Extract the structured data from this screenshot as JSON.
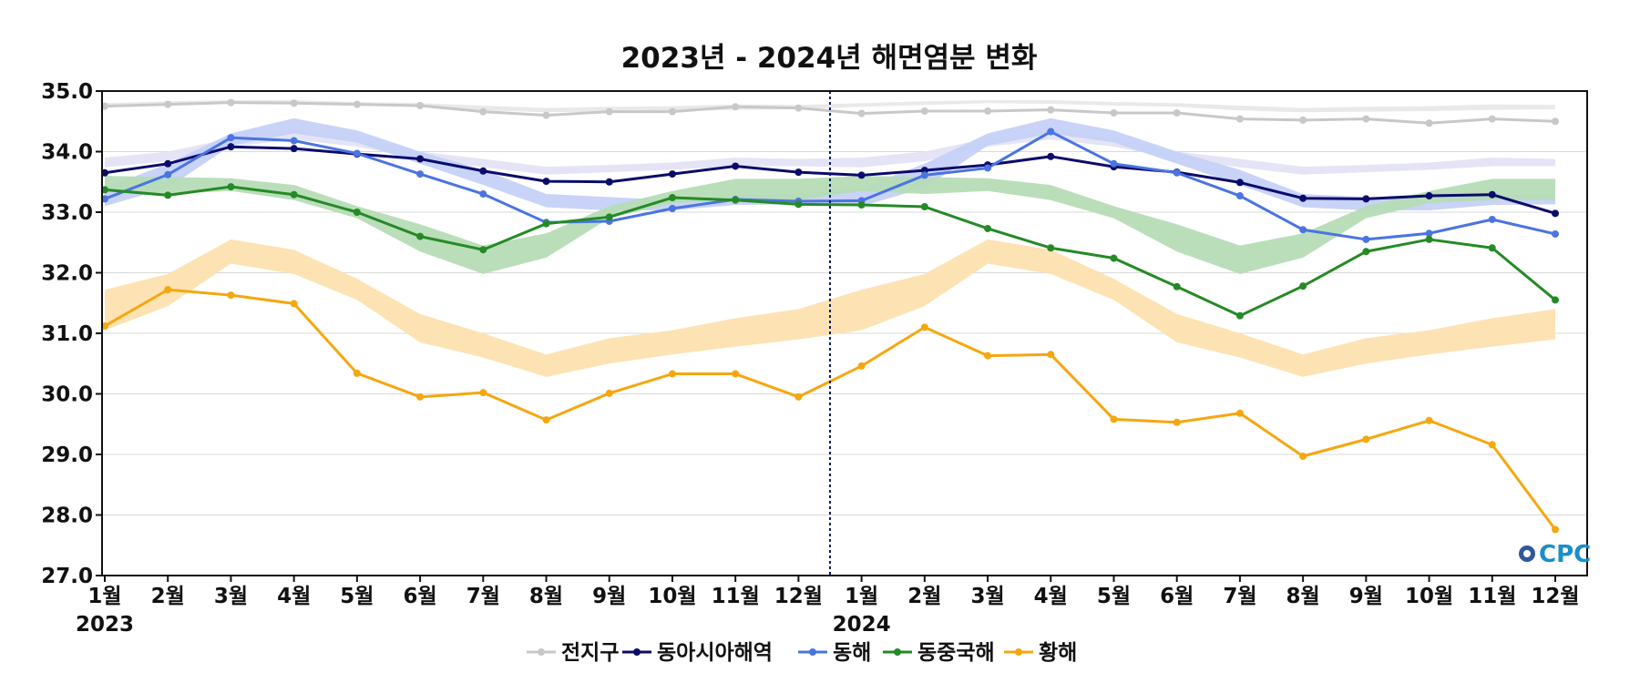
{
  "chart_data": {
    "type": "line",
    "title": "2023년 - 2024년 해면염분 변화",
    "xlabel": "",
    "ylabel": "",
    "ylim": [
      27.0,
      35.0
    ],
    "y_ticks": [
      "35.0",
      "34.0",
      "33.0",
      "32.0",
      "31.0",
      "30.0",
      "29.0",
      "28.0",
      "27.0"
    ],
    "categories": [
      "1월",
      "2월",
      "3월",
      "4월",
      "5월",
      "6월",
      "7월",
      "8월",
      "9월",
      "10월",
      "11월",
      "12월",
      "1월",
      "2월",
      "3월",
      "4월",
      "5월",
      "6월",
      "7월",
      "8월",
      "9월",
      "10월",
      "11월",
      "12월"
    ],
    "year_labels": [
      {
        "label": "2023",
        "index": 0
      },
      {
        "label": "2024",
        "index": 12
      }
    ],
    "divider_between": [
      11,
      12
    ],
    "grid": true,
    "legend_position": "bottom-center",
    "logo": "OCPC",
    "series": [
      {
        "name": "전지구",
        "color": "#c8c8c8",
        "values": [
          34.75,
          34.78,
          34.81,
          34.8,
          34.78,
          34.76,
          34.66,
          34.6,
          34.66,
          34.66,
          34.74,
          34.72,
          34.63,
          34.67,
          34.67,
          34.69,
          34.64,
          34.64,
          34.54,
          34.52,
          34.54,
          34.47,
          34.54,
          34.5
        ],
        "band_low": [
          34.74,
          34.77,
          34.8,
          34.79,
          34.76,
          34.74,
          34.68,
          34.65,
          34.66,
          34.67,
          34.69,
          34.7,
          34.74,
          34.77,
          34.8,
          34.79,
          34.76,
          34.74,
          34.68,
          34.65,
          34.66,
          34.67,
          34.69,
          34.7
        ],
        "band_high": [
          34.8,
          34.83,
          34.85,
          34.85,
          34.82,
          34.8,
          34.76,
          34.72,
          34.74,
          34.75,
          34.78,
          34.77,
          34.8,
          34.83,
          34.85,
          34.85,
          34.82,
          34.8,
          34.76,
          34.72,
          34.74,
          34.75,
          34.78,
          34.77
        ],
        "band_color": "#e8e8e8"
      },
      {
        "name": "동아시아해역",
        "color": "#0b0b6b",
        "values": [
          33.65,
          33.8,
          34.08,
          34.05,
          33.96,
          33.88,
          33.68,
          33.51,
          33.5,
          33.63,
          33.76,
          33.66,
          33.61,
          33.69,
          33.78,
          33.92,
          33.75,
          33.66,
          33.49,
          33.23,
          33.22,
          33.27,
          33.29,
          32.98
        ],
        "band_low": [
          33.74,
          33.84,
          34.08,
          34.2,
          34.08,
          33.88,
          33.74,
          33.62,
          33.66,
          33.7,
          33.76,
          33.76,
          33.74,
          33.84,
          34.08,
          34.2,
          34.08,
          33.88,
          33.74,
          33.62,
          33.66,
          33.7,
          33.76,
          33.76
        ],
        "band_high": [
          33.9,
          34.0,
          34.22,
          34.35,
          34.22,
          34.0,
          33.88,
          33.75,
          33.78,
          33.82,
          33.9,
          33.88,
          33.9,
          34.0,
          34.22,
          34.35,
          34.22,
          34.0,
          33.88,
          33.75,
          33.78,
          33.82,
          33.9,
          33.88
        ],
        "band_color": "#e4e3f5"
      },
      {
        "name": "동해",
        "color": "#4a74e0",
        "values": [
          33.22,
          33.62,
          34.23,
          34.18,
          33.97,
          33.63,
          33.3,
          32.83,
          32.85,
          33.06,
          33.21,
          33.18,
          33.19,
          33.61,
          33.73,
          34.33,
          33.8,
          33.65,
          33.27,
          32.71,
          32.55,
          32.65,
          32.88,
          32.64
        ],
        "band_low": [
          33.1,
          33.4,
          34.1,
          34.3,
          34.15,
          33.8,
          33.45,
          33.08,
          33.03,
          33.03,
          33.12,
          33.13,
          33.1,
          33.4,
          34.1,
          34.3,
          34.15,
          33.8,
          33.45,
          33.08,
          33.03,
          33.03,
          33.12,
          33.13
        ],
        "band_high": [
          33.4,
          33.8,
          34.3,
          34.55,
          34.35,
          34.0,
          33.7,
          33.3,
          33.25,
          33.2,
          33.28,
          33.3,
          33.4,
          33.8,
          34.3,
          34.55,
          34.35,
          34.0,
          33.7,
          33.3,
          33.25,
          33.2,
          33.28,
          33.3
        ],
        "band_color": "#c5d1f7"
      },
      {
        "name": "동중국해",
        "color": "#258a25",
        "values": [
          33.37,
          33.28,
          33.42,
          33.29,
          33.0,
          32.6,
          32.38,
          32.81,
          32.92,
          33.24,
          33.2,
          33.13,
          33.12,
          33.09,
          32.73,
          32.41,
          32.24,
          31.77,
          31.29,
          31.78,
          32.35,
          32.55,
          32.41,
          31.55
        ],
        "band_low": [
          33.35,
          33.3,
          33.35,
          33.2,
          32.9,
          32.35,
          31.98,
          32.25,
          32.9,
          33.15,
          33.2,
          33.2,
          33.35,
          33.3,
          33.35,
          33.2,
          32.9,
          32.35,
          31.98,
          32.25,
          32.9,
          33.15,
          33.2,
          33.2
        ],
        "band_high": [
          33.6,
          33.58,
          33.56,
          33.45,
          33.1,
          32.8,
          32.45,
          32.65,
          33.1,
          33.35,
          33.55,
          33.55,
          33.6,
          33.58,
          33.56,
          33.45,
          33.1,
          32.8,
          32.45,
          32.65,
          33.1,
          33.35,
          33.55,
          33.55
        ],
        "band_color": "#b6dcb6"
      },
      {
        "name": "황해",
        "color": "#f5a70f",
        "values": [
          31.12,
          31.72,
          31.63,
          31.49,
          30.34,
          29.95,
          30.02,
          29.57,
          30.01,
          30.33,
          30.33,
          29.95,
          30.46,
          31.1,
          30.63,
          30.65,
          29.58,
          29.53,
          29.68,
          28.97,
          29.25,
          29.56,
          29.16,
          27.76
        ],
        "band_low": [
          31.05,
          31.45,
          32.15,
          31.98,
          31.55,
          30.85,
          30.6,
          30.28,
          30.5,
          30.65,
          30.78,
          30.9,
          31.05,
          31.45,
          32.15,
          31.98,
          31.55,
          30.85,
          30.6,
          30.28,
          30.5,
          30.65,
          30.78,
          30.9
        ],
        "band_high": [
          31.72,
          31.98,
          32.55,
          32.38,
          31.9,
          31.32,
          31.0,
          30.65,
          30.92,
          31.05,
          31.25,
          31.4,
          31.72,
          31.98,
          32.55,
          32.38,
          31.9,
          31.32,
          31.0,
          30.65,
          30.92,
          31.05,
          31.25,
          31.4
        ],
        "band_color": "#fde2b0"
      }
    ]
  }
}
